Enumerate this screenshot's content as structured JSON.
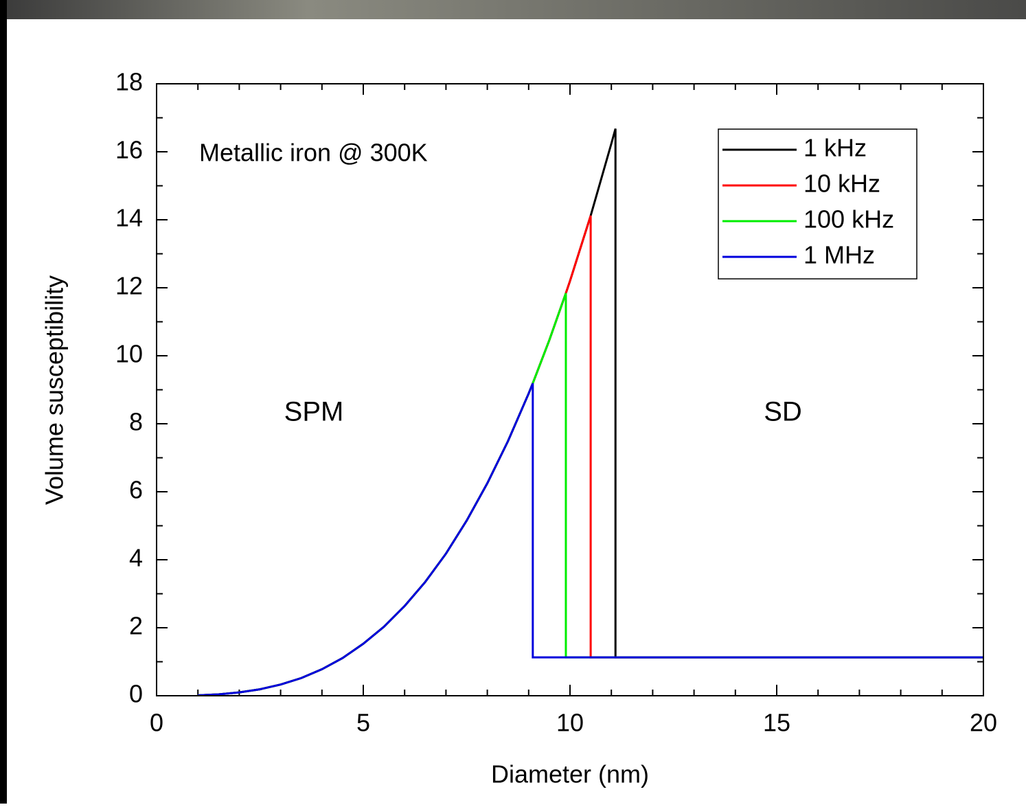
{
  "chart_data": {
    "type": "line",
    "xlabel": "Diameter (nm)",
    "ylabel": "Volume susceptibility",
    "annotations": [
      "Metallic iron @ 300K",
      "SPM",
      "SD"
    ],
    "xlim": [
      0,
      20
    ],
    "xticks": [
      0,
      5,
      10,
      15,
      20
    ],
    "xminorticks": [
      1,
      2,
      3,
      4,
      6,
      7,
      8,
      9,
      11,
      12,
      13,
      14,
      16,
      17,
      18,
      19
    ],
    "ylim": [
      0,
      18
    ],
    "yticks": [
      0,
      2,
      4,
      6,
      8,
      10,
      12,
      14,
      16,
      18
    ],
    "yminorticks": [
      1,
      3,
      5,
      7,
      9,
      11,
      13,
      15,
      17
    ],
    "legend": "upper right",
    "series": [
      {
        "name": "1 kHz",
        "color": "#000000",
        "x": [
          1,
          1.5,
          2,
          2.5,
          3,
          3.5,
          4,
          4.5,
          5,
          5.5,
          6,
          6.5,
          7,
          7.5,
          8,
          8.5,
          9,
          9.1,
          9.5,
          9.9,
          10,
          10.5,
          11,
          11.1,
          11.1,
          20
        ],
        "values": [
          0.012,
          0.041,
          0.098,
          0.19,
          0.33,
          0.52,
          0.78,
          1.11,
          1.53,
          2.03,
          2.64,
          3.35,
          4.18,
          5.15,
          6.25,
          7.49,
          8.89,
          9.19,
          10.46,
          11.84,
          12.2,
          14.12,
          16.24,
          16.68,
          1.13,
          1.13
        ]
      },
      {
        "name": "10 kHz",
        "color": "#ff0000",
        "x": [
          1,
          1.5,
          2,
          2.5,
          3,
          3.5,
          4,
          4.5,
          5,
          5.5,
          6,
          6.5,
          7,
          7.5,
          8,
          8.5,
          9,
          9.1,
          9.5,
          9.9,
          10,
          10.5,
          10.5,
          20
        ],
        "values": [
          0.012,
          0.041,
          0.098,
          0.19,
          0.33,
          0.52,
          0.78,
          1.11,
          1.53,
          2.03,
          2.64,
          3.35,
          4.18,
          5.15,
          6.25,
          7.49,
          8.89,
          9.19,
          10.46,
          11.84,
          12.2,
          14.12,
          1.13,
          1.13
        ]
      },
      {
        "name": "100 kHz",
        "color": "#00ee00",
        "x": [
          1,
          1.5,
          2,
          2.5,
          3,
          3.5,
          4,
          4.5,
          5,
          5.5,
          6,
          6.5,
          7,
          7.5,
          8,
          8.5,
          9,
          9.1,
          9.5,
          9.9,
          9.9,
          20
        ],
        "values": [
          0.012,
          0.041,
          0.098,
          0.19,
          0.33,
          0.52,
          0.78,
          1.11,
          1.53,
          2.03,
          2.64,
          3.35,
          4.18,
          5.15,
          6.25,
          7.49,
          8.89,
          9.19,
          10.46,
          11.84,
          1.13,
          1.13
        ]
      },
      {
        "name": "1 MHz",
        "color": "#0000dd",
        "x": [
          1,
          1.5,
          2,
          2.5,
          3,
          3.5,
          4,
          4.5,
          5,
          5.5,
          6,
          6.5,
          7,
          7.5,
          8,
          8.5,
          9,
          9.1,
          9.1,
          20
        ],
        "values": [
          0.012,
          0.041,
          0.098,
          0.19,
          0.33,
          0.52,
          0.78,
          1.11,
          1.53,
          2.03,
          2.64,
          3.35,
          4.18,
          5.15,
          6.25,
          7.49,
          8.89,
          9.19,
          1.13,
          1.13
        ]
      }
    ]
  }
}
